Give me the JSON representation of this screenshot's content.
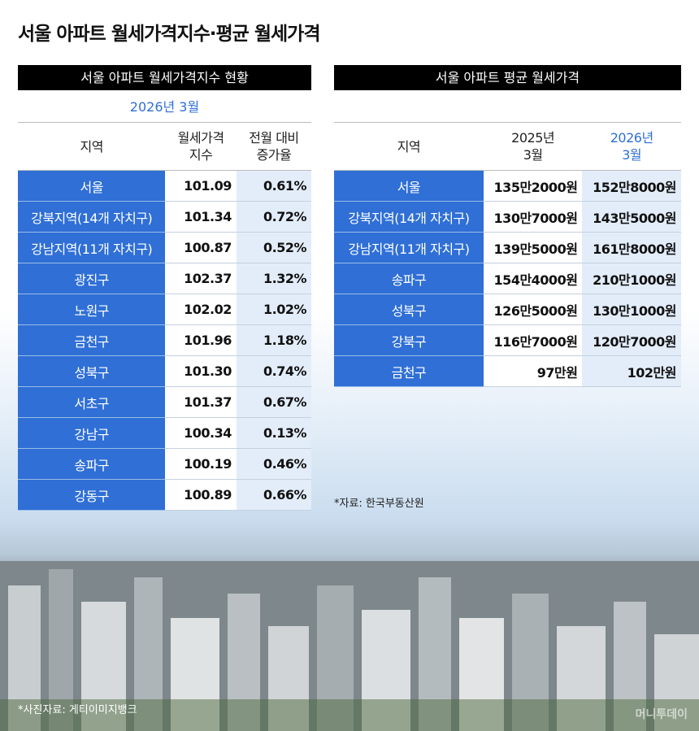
{
  "title": "서울 아파트 월세가격지수·평균 월세가격",
  "left_table": {
    "header": "서울 아파트 월세가격지수 현황",
    "subtitle": "2026년 3월",
    "columns": [
      [
        "지역"
      ],
      [
        "월세가격",
        "지수"
      ],
      [
        "전월 대비",
        "증가율"
      ]
    ],
    "rows": [
      [
        "서울",
        "101.09",
        "0.61%"
      ],
      [
        "강북지역(14개 자치구)",
        "101.34",
        "0.72%"
      ],
      [
        "강남지역(11개 자치구)",
        "100.87",
        "0.52%"
      ],
      [
        "광진구",
        "102.37",
        "1.32%"
      ],
      [
        "노원구",
        "102.02",
        "1.02%"
      ],
      [
        "금천구",
        "101.96",
        "1.18%"
      ],
      [
        "성북구",
        "101.30",
        "0.74%"
      ],
      [
        "서초구",
        "101.37",
        "0.67%"
      ],
      [
        "강남구",
        "100.34",
        "0.13%"
      ],
      [
        "송파구",
        "100.19",
        "0.46%"
      ],
      [
        "강동구",
        "100.89",
        "0.66%"
      ]
    ]
  },
  "right_table": {
    "header": "서울 아파트 평균 월세가격",
    "columns": [
      [
        "지역"
      ],
      [
        "2025년",
        "3월"
      ],
      [
        "2026년",
        "3월"
      ]
    ],
    "rows": [
      [
        "서울",
        "135만2000원",
        "152만8000원"
      ],
      [
        "강북지역(14개 자치구)",
        "130만7000원",
        "143만5000원"
      ],
      [
        "강남지역(11개 자치구)",
        "139만5000원",
        "161만8000원"
      ],
      [
        "송파구",
        "154만4000원",
        "210만1000원"
      ],
      [
        "성북구",
        "126만5000원",
        "130만1000원"
      ],
      [
        "강북구",
        "116만7000원",
        "120만7000원"
      ],
      [
        "금천구",
        "97만원",
        "102만원"
      ]
    ]
  },
  "source": "*자료: 한국부동산원",
  "photo_credit": "*사진자료: 게티이미지뱅크",
  "watermark": "머니투데이"
}
